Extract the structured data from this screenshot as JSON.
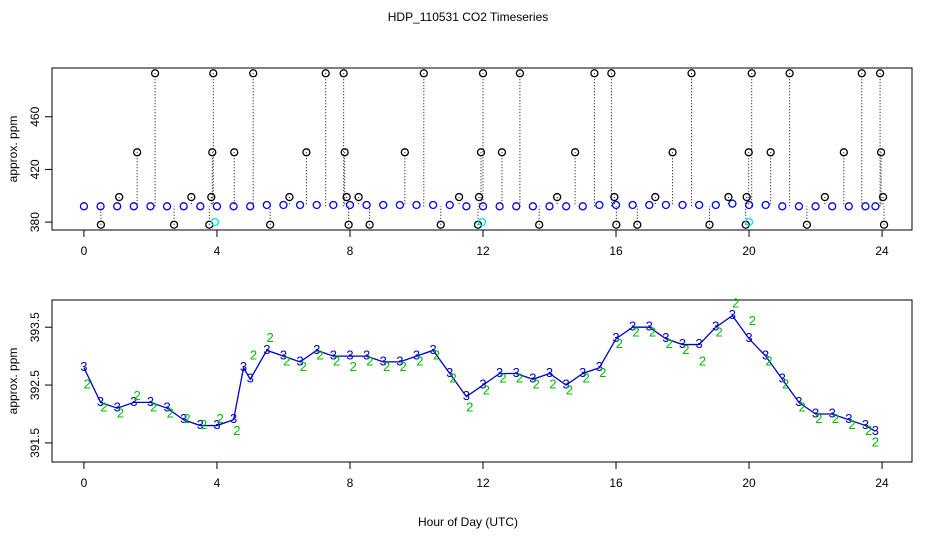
{
  "chart_data": [
    {
      "type": "scatter",
      "title": "HDP_110531  CO2 Timeseries",
      "ylabel": "approx. ppm",
      "xlim": [
        -0.96,
        24.9
      ],
      "xticks": [
        0,
        4,
        8,
        12,
        16,
        20,
        24
      ],
      "ylim": [
        374,
        497
      ],
      "yticks": [
        380,
        420,
        460
      ],
      "stems_to": 392,
      "series": [
        {
          "color": "#0000ff",
          "marker": "circle",
          "x": [
            0,
            0.5,
            1,
            1.5,
            2,
            2.5,
            3,
            3.5,
            4,
            4.5,
            5,
            5.5,
            6,
            6.5,
            7,
            7.5,
            8,
            8.5,
            9,
            9.5,
            10,
            10.5,
            11,
            11.5,
            12,
            12.5,
            13,
            13.5,
            14,
            14.5,
            15,
            15.5,
            16,
            16.5,
            17,
            17.5,
            18,
            18.5,
            19,
            19.5,
            20,
            20.5,
            21,
            21.5,
            22,
            22.5,
            23,
            23.5,
            23.8
          ],
          "values": [
            392,
            392,
            392,
            392,
            392,
            392,
            392,
            392,
            392,
            392,
            392,
            393,
            393,
            393,
            393,
            393,
            393,
            393,
            393,
            393,
            393,
            393,
            393,
            392,
            392,
            392,
            392,
            392,
            392,
            392,
            392,
            393,
            393,
            393,
            393,
            393,
            393,
            393,
            393,
            394,
            393,
            393,
            392,
            392,
            392,
            392,
            392,
            392,
            392
          ]
        },
        {
          "color": "#000000",
          "marker": "circle",
          "stem": true,
          "x": [
            2.14,
            3.89,
            5.09,
            7.27,
            7.81,
            10.22,
            12.0,
            13.11,
            15.35,
            15.86,
            18.27,
            20.08,
            21.22,
            23.39,
            23.94,
            1.6,
            3.86,
            4.52,
            6.69,
            7.84,
            9.65,
            11.94,
            12.57,
            14.77,
            17.7,
            19.99,
            20.65,
            22.85,
            23.97,
            1.06,
            3.23,
            3.83,
            6.18,
            7.9,
            8.26,
            11.28,
            11.88,
            14.23,
            15.95,
            17.18,
            19.38,
            19.93,
            22.28,
            24.03,
            0.51,
            2.71,
            3.77,
            5.6,
            7.96,
            8.59,
            10.73,
            11.85,
            13.69,
            16.01,
            16.64,
            18.81,
            19.9,
            21.74,
            24.06
          ],
          "values": [
            493,
            493,
            493,
            493,
            493,
            493,
            493,
            493,
            493,
            493,
            493,
            493,
            493,
            493,
            493,
            433,
            433,
            433,
            433,
            433,
            433,
            433,
            433,
            433,
            433,
            433,
            433,
            433,
            433,
            399,
            399,
            399,
            399,
            399,
            399,
            399,
            399,
            399,
            399,
            399,
            399,
            399,
            399,
            399,
            378,
            378,
            378,
            378,
            378,
            378,
            378,
            378,
            378,
            378,
            378,
            378,
            378,
            378,
            378
          ]
        },
        {
          "color": "#00e5e5",
          "marker": "circle",
          "x": [
            3.94,
            11.97,
            20.0
          ],
          "values": [
            380,
            380,
            380
          ]
        }
      ]
    },
    {
      "type": "scatter",
      "ylabel": "approx. ppm",
      "xlabel": "Hour of Day (UTC)",
      "xlim": [
        -0.96,
        24.9
      ],
      "xticks": [
        0,
        4,
        8,
        12,
        16,
        20,
        24
      ],
      "ylim": [
        391.17,
        393.97
      ],
      "yticks": [
        391.5,
        392.5,
        393.5
      ],
      "series": [
        {
          "name": "3",
          "color": "#0000cc",
          "marker": "digit",
          "line": true,
          "x": [
            0,
            0.5,
            1,
            1.5,
            2,
            2.5,
            3,
            3.5,
            4,
            4.5,
            4.8,
            5,
            5.5,
            6,
            6.5,
            7,
            7.5,
            8,
            8.5,
            9,
            9.5,
            10,
            10.5,
            11,
            11.5,
            12,
            12.5,
            13,
            13.5,
            14,
            14.5,
            15,
            15.5,
            16,
            16.5,
            17,
            17.5,
            18,
            18.5,
            19,
            19.5,
            20,
            20.5,
            21,
            21.5,
            22,
            22.5,
            23,
            23.5,
            23.8
          ],
          "values": [
            392.8,
            392.2,
            392.1,
            392.2,
            392.2,
            392.1,
            391.9,
            391.8,
            391.8,
            391.9,
            392.8,
            392.6,
            393.1,
            393.0,
            392.9,
            393.1,
            393.0,
            393.0,
            393.0,
            392.9,
            392.9,
            393.0,
            393.1,
            392.7,
            392.3,
            392.5,
            392.7,
            392.7,
            392.6,
            392.7,
            392.5,
            392.7,
            392.8,
            393.3,
            393.5,
            393.5,
            393.3,
            393.2,
            393.2,
            393.5,
            393.7,
            393.3,
            393.0,
            392.6,
            392.2,
            392.0,
            392.0,
            391.9,
            391.8,
            391.7
          ]
        },
        {
          "name": "2",
          "color": "#00bb00",
          "marker": "digit",
          "x": [
            0.1,
            0.6,
            1.1,
            1.6,
            2.1,
            2.6,
            3.1,
            3.6,
            4.1,
            4.6,
            5.1,
            5.6,
            6.1,
            6.6,
            7.1,
            7.6,
            8.1,
            8.6,
            9.1,
            9.6,
            10.1,
            10.6,
            11.1,
            11.6,
            12.1,
            12.6,
            13.1,
            13.6,
            14.1,
            14.6,
            15.1,
            15.6,
            16.1,
            16.6,
            17.1,
            17.6,
            18.1,
            18.6,
            19.1,
            19.6,
            20.1,
            20.6,
            21.1,
            21.6,
            22.1,
            22.6,
            23.1,
            23.6,
            23.8
          ],
          "values": [
            392.5,
            392.1,
            392.0,
            392.3,
            392.1,
            392.0,
            391.9,
            391.8,
            391.9,
            391.7,
            393.0,
            393.3,
            392.9,
            392.8,
            393.0,
            392.9,
            392.8,
            392.9,
            392.8,
            392.8,
            392.9,
            393.0,
            392.6,
            392.1,
            392.4,
            392.6,
            392.6,
            392.5,
            392.5,
            392.4,
            392.6,
            392.7,
            393.2,
            393.4,
            393.4,
            393.2,
            393.1,
            392.9,
            393.4,
            393.9,
            393.6,
            392.9,
            392.5,
            392.1,
            391.9,
            391.9,
            391.8,
            391.7,
            391.5
          ]
        }
      ]
    }
  ]
}
